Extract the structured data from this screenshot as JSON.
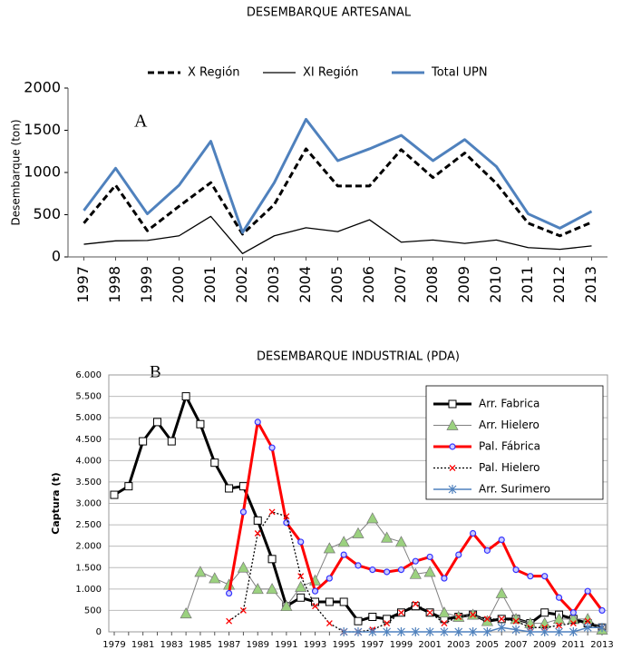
{
  "chart_data": [
    {
      "type": "line",
      "title": "DESEMBARQUE ARTESANAL",
      "ylabel": "Desembarque (ton)",
      "annotation": "A",
      "categories": [
        "1997",
        "1998",
        "1999",
        "2000",
        "2001",
        "2002",
        "2003",
        "2004",
        "2005",
        "2006",
        "2007",
        "2008",
        "2009",
        "2010",
        "2011",
        "2012",
        "2013"
      ],
      "ylim": [
        0,
        2000
      ],
      "yticks": [
        0,
        500,
        1000,
        1500,
        2000
      ],
      "grid": false,
      "legend": "top",
      "series": [
        {
          "name": "X Región",
          "color": "#000000",
          "dash": true,
          "line_width": 3,
          "values": [
            400,
            850,
            310,
            600,
            880,
            270,
            620,
            1280,
            840,
            840,
            1270,
            940,
            1230,
            870,
            400,
            250,
            410
          ]
        },
        {
          "name": "XI Región",
          "color": "#000000",
          "dash": false,
          "line_width": 1.3,
          "values": [
            150,
            190,
            195,
            250,
            480,
            40,
            250,
            345,
            300,
            440,
            175,
            200,
            160,
            200,
            110,
            90,
            130
          ]
        },
        {
          "name": "Total UPN",
          "color": "#4f81bd",
          "dash": false,
          "line_width": 3,
          "values": [
            550,
            1050,
            510,
            850,
            1370,
            290,
            880,
            1630,
            1140,
            1280,
            1440,
            1140,
            1390,
            1070,
            510,
            340,
            540
          ]
        }
      ]
    },
    {
      "type": "line",
      "title": "DESEMBARQUE INDUSTRIAL (PDA)",
      "ylabel": "Captura (t)",
      "annotation": "B",
      "categories": [
        "1979",
        null,
        "1981",
        null,
        "1983",
        null,
        "1985",
        null,
        "1987",
        null,
        "1989",
        null,
        "1991",
        null,
        "1993",
        null,
        "1995",
        null,
        "1997",
        null,
        "1999",
        null,
        "2001",
        null,
        "2003",
        null,
        "2005",
        null,
        "2007",
        null,
        "2009",
        null,
        "2011",
        null,
        "2013"
      ],
      "ylim": [
        0,
        6000
      ],
      "yticks": [
        0,
        500,
        {
          "value": 1000,
          "label": "1.000"
        },
        {
          "value": 1500,
          "label": "1.500"
        },
        {
          "value": 2000,
          "label": "2.000"
        },
        {
          "value": 2500,
          "label": "2.500"
        },
        {
          "value": 3000,
          "label": "3.000"
        },
        {
          "value": 3500,
          "label": "3.500"
        },
        {
          "value": 4000,
          "label": "4.000"
        },
        {
          "value": 4500,
          "label": "4.500"
        },
        {
          "value": 5000,
          "label": "5.000"
        },
        {
          "value": 5500,
          "label": "5.500"
        },
        {
          "value": 6000,
          "label": "6.000"
        }
      ],
      "grid": true,
      "legend": "upper right",
      "series": [
        {
          "name": "Arr. Fabrica",
          "color": "#000000",
          "dash": false,
          "line_width": 3,
          "marker": "square",
          "marker_color": "#ffffff",
          "values": [
            3200,
            3400,
            4450,
            4900,
            4450,
            5500,
            4850,
            3950,
            3350,
            3400,
            2600,
            1700,
            600,
            800,
            700,
            700,
            700,
            250,
            350,
            300,
            450,
            600,
            450,
            300,
            350,
            400,
            250,
            300,
            300,
            200,
            450,
            400,
            300,
            200,
            100
          ]
        },
        {
          "name": "Arr. Hielero",
          "color": "#808080",
          "dash": false,
          "line_width": 1,
          "marker": "triangle",
          "marker_color": "#9bd17f",
          "values": [
            null,
            null,
            null,
            null,
            null,
            430,
            1400,
            1250,
            1100,
            1500,
            1000,
            1000,
            600,
            1050,
            1200,
            1950,
            2100,
            2300,
            2650,
            2200,
            2100,
            1350,
            1400,
            450,
            350,
            400,
            250,
            900,
            300,
            200,
            200,
            300,
            300,
            300,
            50
          ]
        },
        {
          "name": "Pal. Fábrica",
          "color": "#ff0000",
          "dash": false,
          "line_width": 3,
          "marker": "circle",
          "marker_color": "#3333ff",
          "values": [
            null,
            null,
            null,
            null,
            null,
            null,
            null,
            null,
            900,
            2800,
            4900,
            4300,
            2550,
            2100,
            950,
            1250,
            1800,
            1550,
            1450,
            1400,
            1450,
            1650,
            1750,
            1250,
            1800,
            2300,
            1900,
            2150,
            1450,
            1300,
            1300,
            800,
            450,
            950,
            500
          ]
        },
        {
          "name": "Pal. Hielero",
          "color": "#000000",
          "dash": true,
          "line_width": 1.3,
          "marker": "x",
          "marker_color": "#ff0000",
          "values": [
            null,
            null,
            null,
            null,
            null,
            null,
            null,
            null,
            250,
            500,
            2300,
            2800,
            2700,
            1300,
            600,
            200,
            0,
            0,
            50,
            200,
            450,
            650,
            450,
            200,
            350,
            400,
            300,
            300,
            250,
            100,
            100,
            150,
            200,
            250,
            100
          ]
        },
        {
          "name": "Arr. Surimero",
          "color": "#4f81bd",
          "dash": false,
          "line_width": 1.5,
          "marker": "star",
          "marker_color": "#4f81bd",
          "values": [
            null,
            null,
            null,
            null,
            null,
            null,
            null,
            null,
            null,
            null,
            null,
            null,
            null,
            null,
            null,
            null,
            0,
            0,
            0,
            0,
            0,
            0,
            0,
            0,
            0,
            0,
            0,
            100,
            50,
            0,
            0,
            0,
            0,
            100,
            100
          ]
        }
      ]
    }
  ]
}
